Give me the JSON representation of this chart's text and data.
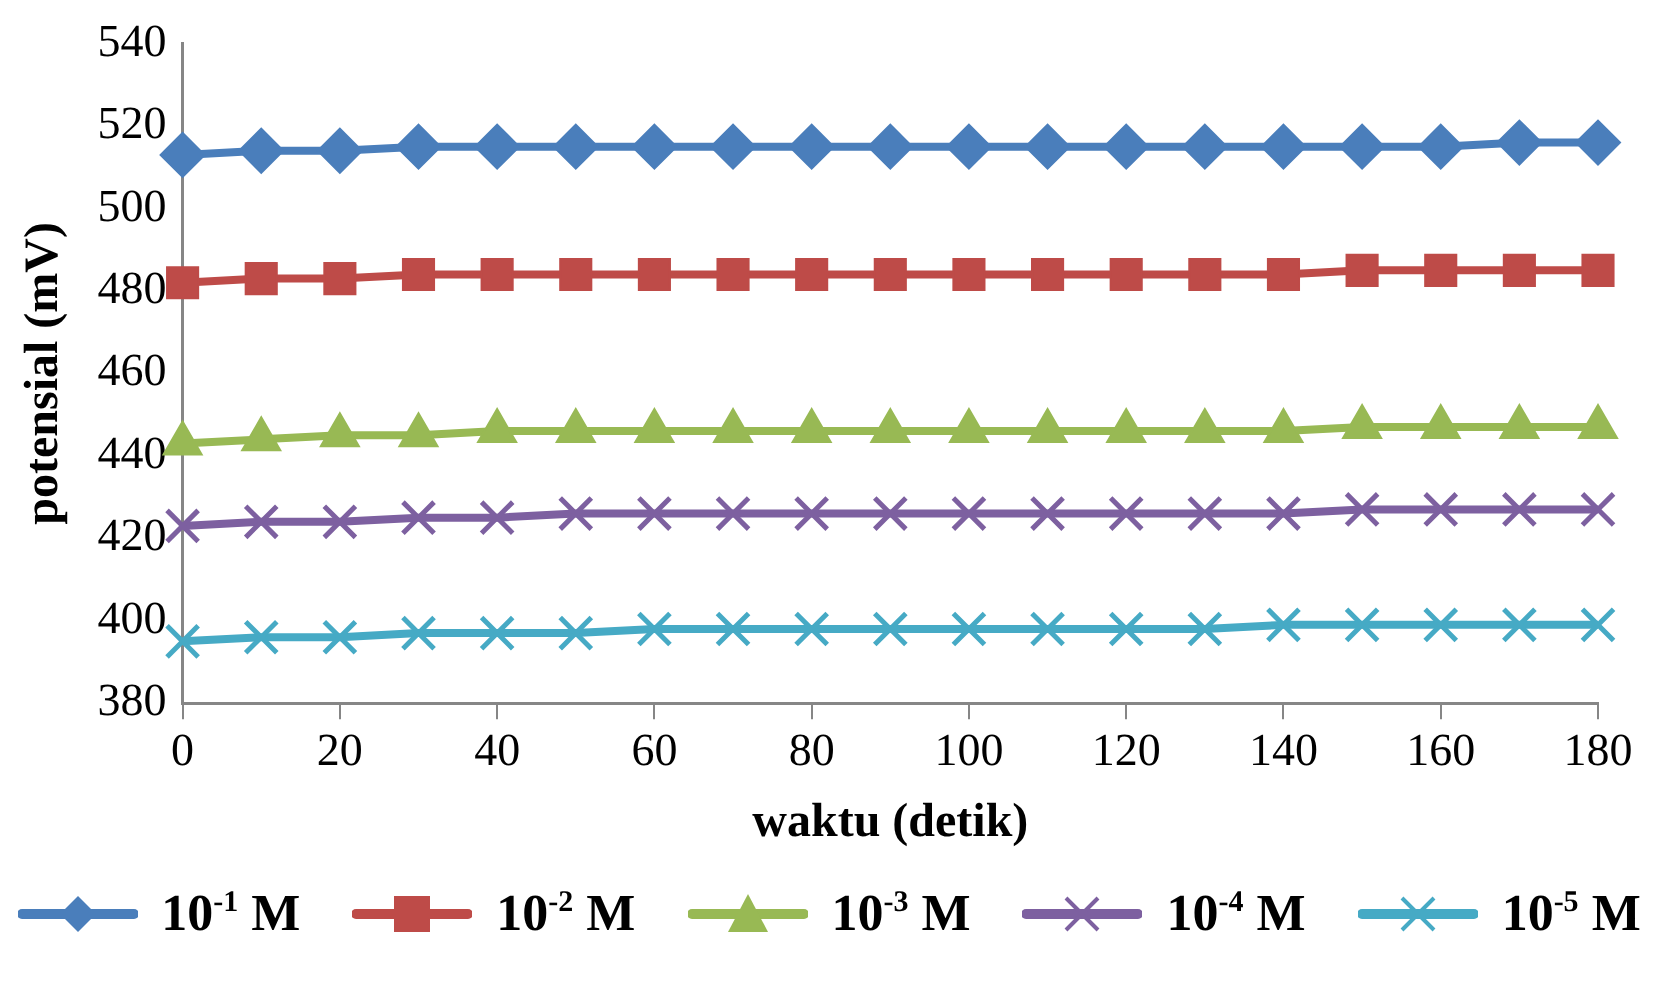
{
  "chart_data": {
    "type": "line",
    "xlabel": "waktu (detik)",
    "ylabel": "potensial (mV)",
    "x": [
      0,
      10,
      20,
      30,
      40,
      50,
      60,
      70,
      80,
      90,
      100,
      110,
      120,
      130,
      140,
      150,
      160,
      170,
      180
    ],
    "xlim": [
      0,
      180
    ],
    "xticks": [
      0,
      20,
      40,
      60,
      80,
      100,
      120,
      140,
      160,
      180
    ],
    "ylim": [
      380,
      540
    ],
    "yticks": [
      380,
      400,
      420,
      440,
      460,
      480,
      500,
      520,
      540
    ],
    "grid": false,
    "legend": "bottom",
    "line_style": "solid",
    "series": [
      {
        "name": "10$^{-1}$ M",
        "color": "#4a7ebb",
        "marker": "diamond",
        "values": [
          513,
          514,
          514,
          515,
          515,
          515,
          515,
          515,
          515,
          515,
          515,
          515,
          515,
          515,
          515,
          515,
          515,
          516,
          516
        ]
      },
      {
        "name": "10$^{-2}$ M",
        "color": "#be4b48",
        "marker": "square",
        "values": [
          482,
          483,
          483,
          484,
          484,
          484,
          484,
          484,
          484,
          484,
          484,
          484,
          484,
          484,
          484,
          485,
          485,
          485,
          485
        ]
      },
      {
        "name": "10$^{-3}$ M",
        "color": "#98b954",
        "marker": "triangle",
        "values": [
          443,
          444,
          445,
          445,
          446,
          446,
          446,
          446,
          446,
          446,
          446,
          446,
          446,
          446,
          446,
          447,
          447,
          447,
          447
        ]
      },
      {
        "name": "10$^{-4}$ M",
        "color": "#7d60a0",
        "marker": "cross",
        "values": [
          423,
          424,
          424,
          425,
          425,
          426,
          426,
          426,
          426,
          426,
          426,
          426,
          426,
          426,
          426,
          427,
          427,
          427,
          427
        ]
      },
      {
        "name": "10$^{-5}$ M",
        "color": "#46aac5",
        "marker": "cross",
        "values": [
          395,
          396,
          396,
          397,
          397,
          397,
          398,
          398,
          398,
          398,
          398,
          398,
          398,
          398,
          399,
          399,
          399,
          399,
          399
        ]
      }
    ]
  }
}
